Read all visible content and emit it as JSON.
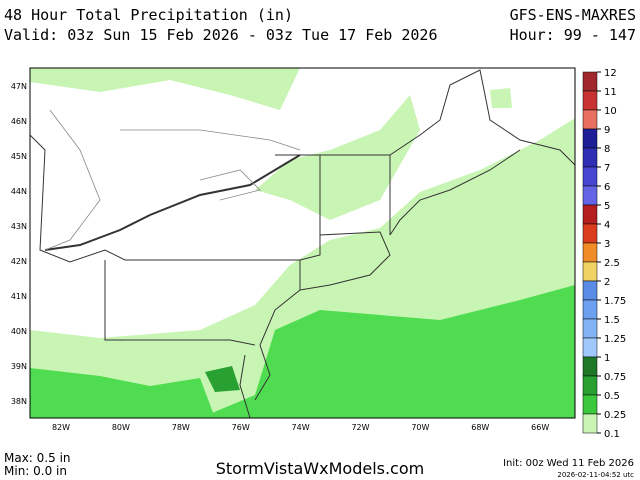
{
  "header": {
    "title": "48 Hour Total Precipitation (in)",
    "valid": "Valid: 03z Sun 15 Feb 2026 - 03z Tue 17 Feb 2026",
    "model": "GFS-ENS-MAXRES",
    "hours": "Hour: 99 - 147"
  },
  "map": {
    "lat_labels": [
      "47N",
      "46N",
      "45N",
      "44N",
      "43N",
      "42N",
      "41N",
      "40N",
      "39N",
      "38N"
    ],
    "lon_labels": [
      "82W",
      "80W",
      "78W",
      "76W",
      "74W",
      "72W",
      "70W",
      "68W",
      "66W"
    ]
  },
  "colorbar": {
    "labels": [
      "12",
      "11",
      "10",
      "9",
      "8",
      "7",
      "6",
      "5",
      "4",
      "3",
      "2.5",
      "2",
      "1.75",
      "1.5",
      "1.25",
      "1",
      "0.75",
      "0.5",
      "0.25",
      "0.1"
    ],
    "colors": [
      "#a0282c",
      "#c83232",
      "#e87060",
      "#1e1e96",
      "#2e2eb4",
      "#4646d2",
      "#6464e6",
      "#b41e1e",
      "#dc3c1e",
      "#f08c28",
      "#f0d264",
      "#5a8ce6",
      "#6ea0f0",
      "#82b4f5",
      "#a0c8fa",
      "#1e7828",
      "#28a032",
      "#3cc83c",
      "#c8f5b4"
    ]
  },
  "footer": {
    "max": "Max: 0.5 in",
    "min": "Min: 0.0 in",
    "site": "StormVistaWxModels.com",
    "init": "Init: 00z Wed 11 Feb 2026",
    "stamp": "2026-02-11-04:52 utc"
  }
}
